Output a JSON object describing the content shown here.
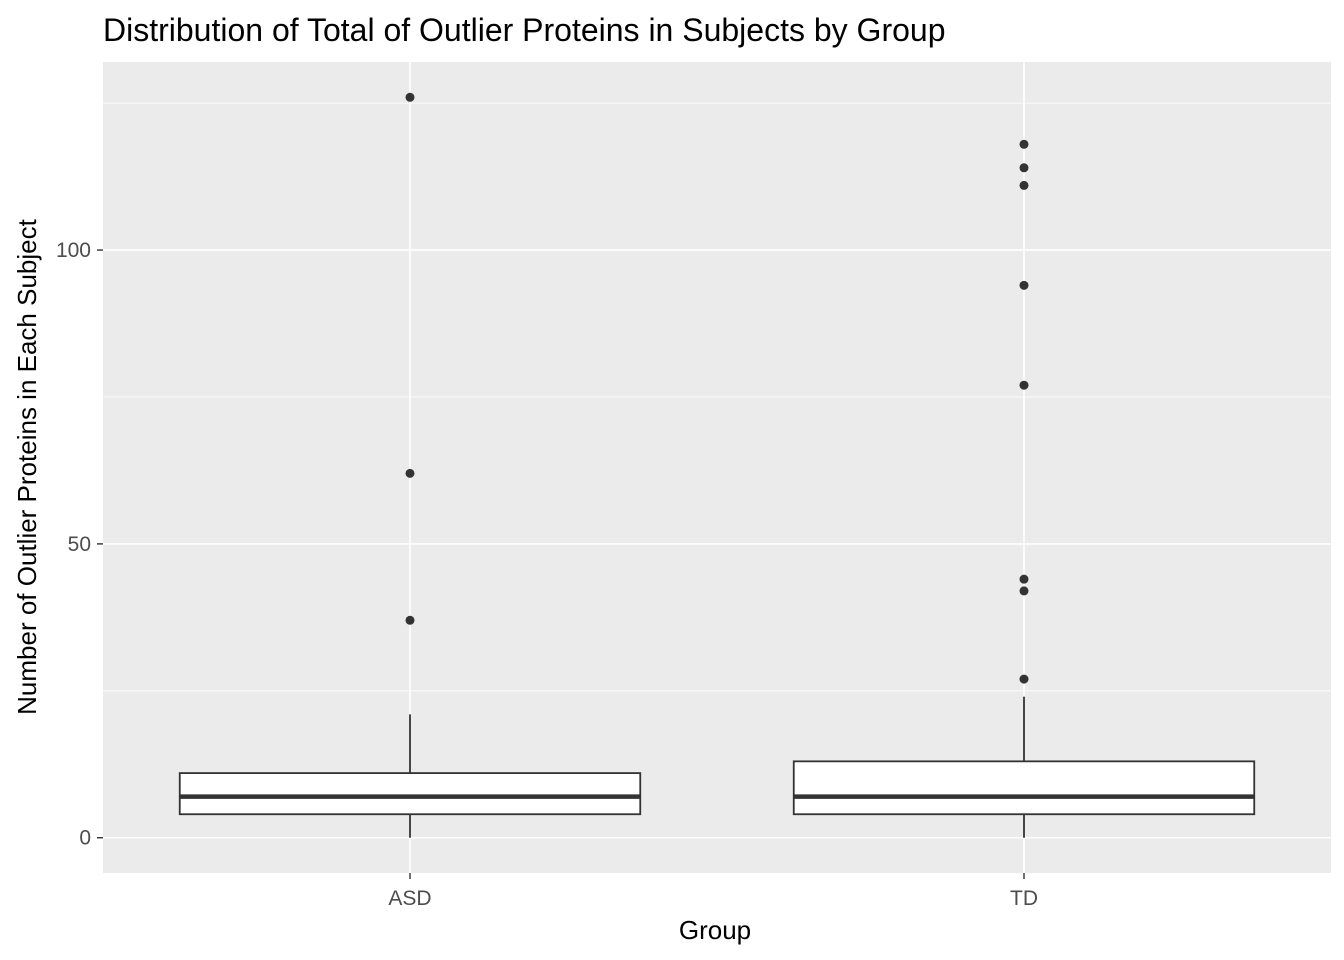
{
  "chart_data": {
    "type": "boxplot",
    "title": "Distribution of Total of Outlier Proteins in Subjects by Group",
    "xlabel": "Group",
    "ylabel": "Number of Outlier Proteins in Each Subject",
    "categories": [
      "ASD",
      "TD"
    ],
    "y_ticks": [
      0,
      50,
      100
    ],
    "y_tick_labels": [
      "0",
      "50",
      "100"
    ],
    "ylim": [
      -6,
      132
    ],
    "grid": true,
    "legend": "none",
    "colors": {
      "panel_background": "#ebebeb",
      "grid_line": "#ffffff",
      "box_fill": "#ffffff",
      "box_outline": "#333333",
      "outlier_point": "#333333",
      "tick_label": "#4d4d4d"
    },
    "boxes": [
      {
        "group": "ASD",
        "lower_whisker": 0,
        "q1": 4,
        "median": 7,
        "q3": 11,
        "upper_whisker": 21,
        "outliers": [
          37,
          62,
          126
        ]
      },
      {
        "group": "TD",
        "lower_whisker": 0,
        "q1": 4,
        "median": 7,
        "q3": 13,
        "upper_whisker": 24,
        "outliers": [
          27,
          42,
          44,
          77,
          94,
          111,
          114,
          118
        ]
      }
    ]
  }
}
